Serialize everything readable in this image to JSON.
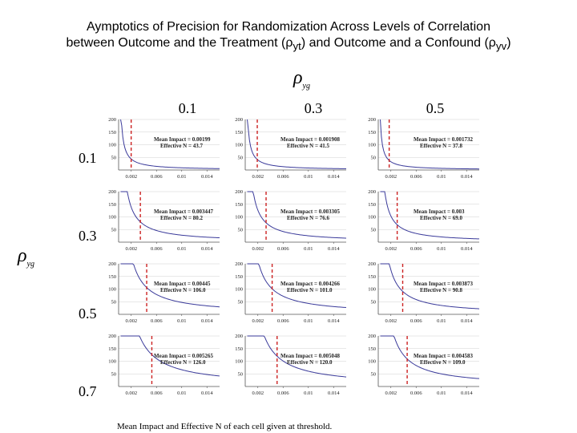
{
  "title": {
    "line1": "Aymptotics of Precision for Randomization Across Levels of Correlation",
    "line2_prefix": "between Outcome and the Treatment (ρ",
    "line2_sub1": "yt",
    "line2_mid": ") and Outcome and a Confound (ρ",
    "line2_sub2": "yv",
    "line2_suffix": ")"
  },
  "col_axis": {
    "symbol": "ρ",
    "sub": "yg",
    "levels": [
      "0.1",
      "0.3",
      "0.5"
    ]
  },
  "row_axis": {
    "symbol": "ρ",
    "sub": "yg",
    "levels": [
      "0.1",
      "0.3",
      "0.5",
      "0.7"
    ]
  },
  "caption": "Mean Impact and Effective N of each cell given at threshold.",
  "colors": {
    "curve": "#3a3a9a",
    "threshold": "#cc2222",
    "axis": "#555555",
    "grid": "#d0d0d0"
  },
  "chart_data": {
    "type": "line",
    "x_ticks": [
      "0.002",
      "0.006",
      "0.01",
      "0.014"
    ],
    "y_ticks": [
      "50",
      "100",
      "150",
      "200"
    ],
    "xlim": [
      0,
      0.016
    ],
    "ylim": [
      0,
      200
    ],
    "curve_model": "y = k / x",
    "cells": [
      {
        "row": "0.1",
        "col": "0.1",
        "mean_impact_label": "Mean Impact = 0.00199",
        "effective_n_label": "Effective N = 43.7",
        "mean_impact": 0.00199,
        "effective_n": 43.7
      },
      {
        "row": "0.1",
        "col": "0.3",
        "mean_impact_label": "Mean Impact = 0.001908",
        "effective_n_label": "Effective N = 41.5",
        "mean_impact": 0.001908,
        "effective_n": 41.5
      },
      {
        "row": "0.1",
        "col": "0.5",
        "mean_impact_label": "Mean Impact = 0.001732",
        "effective_n_label": "Effective N = 37.8",
        "mean_impact": 0.001732,
        "effective_n": 37.8
      },
      {
        "row": "0.3",
        "col": "0.1",
        "mean_impact_label": "Mean Impact = 0.003447",
        "effective_n_label": "Effective N = 80.2",
        "mean_impact": 0.003447,
        "effective_n": 80.2
      },
      {
        "row": "0.3",
        "col": "0.3",
        "mean_impact_label": "Mean Impact = 0.003305",
        "effective_n_label": "Effective N = 76.6",
        "mean_impact": 0.003305,
        "effective_n": 76.6
      },
      {
        "row": "0.3",
        "col": "0.5",
        "mean_impact_label": "Mean Impact = 0.003",
        "effective_n_label": "Effective N = 69.0",
        "mean_impact": 0.003,
        "effective_n": 69.0
      },
      {
        "row": "0.5",
        "col": "0.1",
        "mean_impact_label": "Mean Impact = 0.00445",
        "effective_n_label": "Effective N = 106.0",
        "mean_impact": 0.00445,
        "effective_n": 106.0
      },
      {
        "row": "0.5",
        "col": "0.3",
        "mean_impact_label": "Mean Impact = 0.004266",
        "effective_n_label": "Effective N = 101.0",
        "mean_impact": 0.004266,
        "effective_n": 101.0
      },
      {
        "row": "0.5",
        "col": "0.5",
        "mean_impact_label": "Mean Impact = 0.003873",
        "effective_n_label": "Effective N = 90.8",
        "mean_impact": 0.003873,
        "effective_n": 90.8
      },
      {
        "row": "0.7",
        "col": "0.1",
        "mean_impact_label": "Mean Impact = 0.005265",
        "effective_n_label": "Effective N = 126.0",
        "mean_impact": 0.005265,
        "effective_n": 126.0
      },
      {
        "row": "0.7",
        "col": "0.3",
        "mean_impact_label": "Mean Impact = 0.005048",
        "effective_n_label": "Effective N = 120.0",
        "mean_impact": 0.005048,
        "effective_n": 120.0
      },
      {
        "row": "0.7",
        "col": "0.5",
        "mean_impact_label": "Mean Impact = 0.004583",
        "effective_n_label": "Effective N = 109.0",
        "mean_impact": 0.004583,
        "effective_n": 109.0
      }
    ]
  }
}
